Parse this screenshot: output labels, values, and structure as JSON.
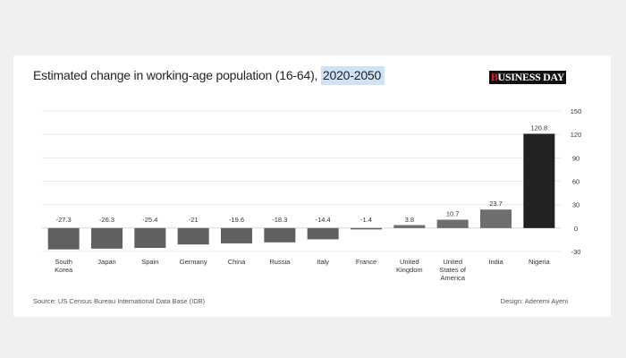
{
  "header": {
    "title_main": "Estimated change in working-age population (16-64), ",
    "title_years": "2020-2050",
    "logo_part1": "B",
    "logo_part2": "USINESS DAY"
  },
  "footer": {
    "source": "Source: US Census Bureau International Data Base (IDB)",
    "design": "Design: Aderemi Ayeni"
  },
  "chart_data": {
    "type": "bar",
    "title": "Estimated change in working-age population (16-64), 2020-2050",
    "categories": [
      [
        "South",
        "Korea"
      ],
      [
        "Japan"
      ],
      [
        "Spain"
      ],
      [
        "Germany"
      ],
      [
        "China"
      ],
      [
        "Russia"
      ],
      [
        "Italy"
      ],
      [
        "France"
      ],
      [
        "United",
        "Kingdom"
      ],
      [
        "United",
        "States of",
        "America"
      ],
      [
        "India"
      ],
      [
        "Nigeria"
      ]
    ],
    "values": [
      -27.3,
      -26.3,
      -25.4,
      -21,
      -19.6,
      -18.3,
      -14.4,
      -1.4,
      3.8,
      10.7,
      23.7,
      120.8
    ],
    "value_labels": [
      "-27.3",
      "-26.3",
      "-25.4",
      "-21",
      "-19.6",
      "-18.3",
      "-14.4",
      "-1.4",
      "3.8",
      "10.7",
      "23.7",
      "120.8"
    ],
    "ylim": [
      -30,
      150
    ],
    "yticks": [
      -30,
      0,
      30,
      60,
      90,
      120,
      150
    ],
    "ytick_labels": [
      "-30",
      "0",
      "30",
      "60",
      "90",
      "120",
      "150"
    ],
    "y_axis_side": "right",
    "grid": true,
    "colors": {
      "negative": "#606060",
      "positive_small": "#6e6e6e",
      "highlight": "#222222",
      "grid": "#e3e3e3"
    },
    "xlabel": "",
    "ylabel": ""
  }
}
